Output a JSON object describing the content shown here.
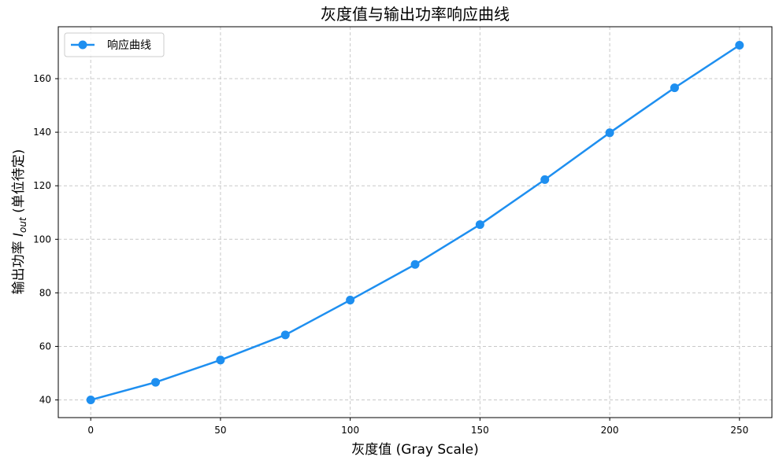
{
  "chart_data": {
    "type": "line",
    "title": "灰度值与输出功率响应曲线",
    "xlabel": "灰度值 (Gray Scale)",
    "ylabel_prefix": "输出功率 ",
    "ylabel_symbol": "I",
    "ylabel_subscript": "out",
    "ylabel_suffix": " (单位待定)",
    "xlim": [
      -12.5,
      262.5
    ],
    "ylim": [
      33.4,
      179.4
    ],
    "xticks": [
      0,
      50,
      100,
      150,
      200,
      250
    ],
    "yticks": [
      40,
      60,
      80,
      100,
      120,
      140,
      160
    ],
    "grid": true,
    "legend_position": "top-left",
    "series": [
      {
        "name": "响应曲线",
        "color": "#1e8ff0",
        "marker": "circle",
        "x": [
          0,
          25,
          50,
          75,
          100,
          125,
          150,
          175,
          200,
          225,
          250
        ],
        "y": [
          40.0,
          46.6,
          54.9,
          64.3,
          77.3,
          90.6,
          105.5,
          122.3,
          139.8,
          156.6,
          172.5
        ]
      }
    ]
  }
}
